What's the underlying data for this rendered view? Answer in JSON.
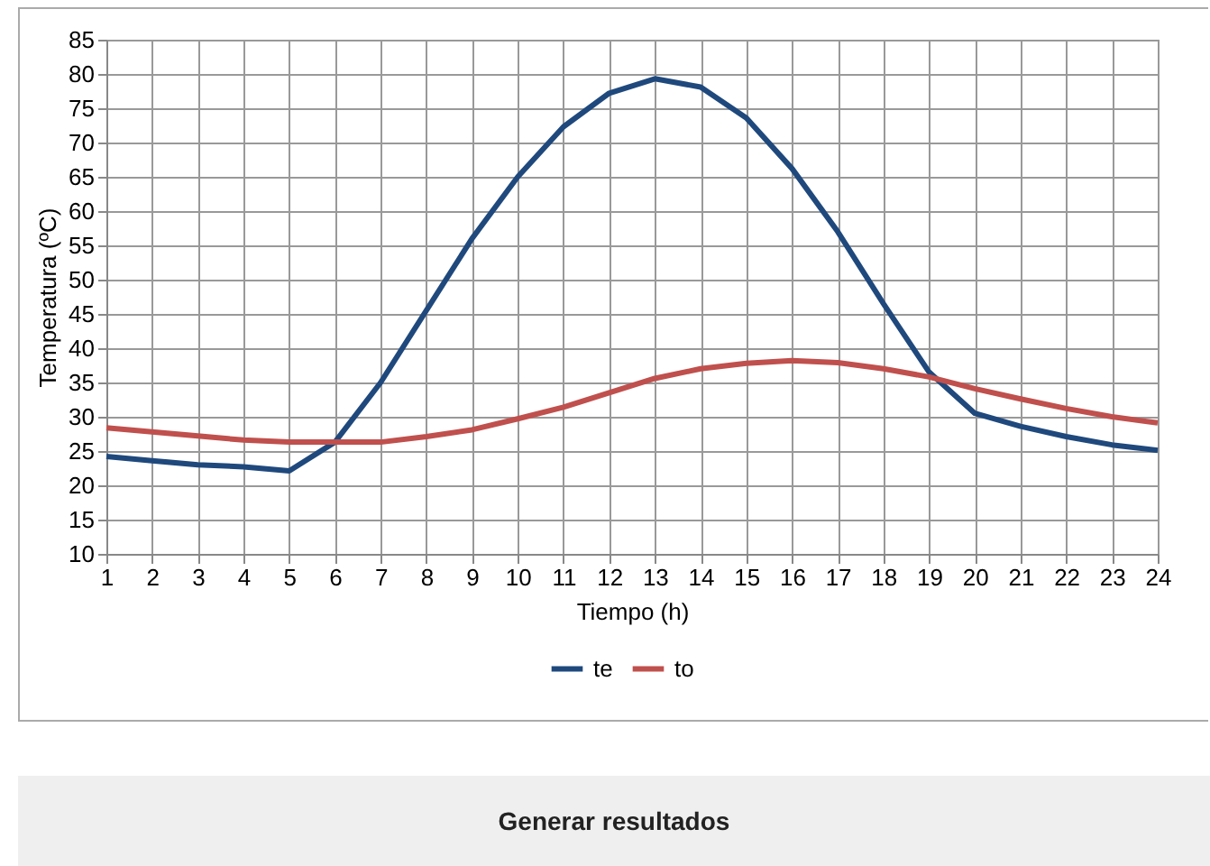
{
  "chart_data": {
    "type": "line",
    "xlabel": "Tiempo (h)",
    "ylabel": "Temperatura (ºC)",
    "x": [
      1,
      2,
      3,
      4,
      5,
      6,
      7,
      8,
      9,
      10,
      11,
      12,
      13,
      14,
      15,
      16,
      17,
      18,
      19,
      20,
      21,
      22,
      23,
      24
    ],
    "series": [
      {
        "name": "te",
        "color": "#1f497d",
        "values": [
          24.2,
          23.6,
          23.0,
          22.7,
          22.1,
          26.3,
          35,
          45.5,
          56,
          65,
          72.3,
          77.2,
          79.3,
          78.1,
          73.6,
          66.2,
          57,
          46.5,
          36.5,
          30.5,
          28.6,
          27.1,
          25.9,
          25.1
        ]
      },
      {
        "name": "to",
        "color": "#c0504d",
        "values": [
          28.4,
          27.8,
          27.2,
          26.6,
          26.3,
          26.3,
          26.3,
          27.1,
          28.1,
          29.7,
          31.4,
          33.5,
          35.6,
          37,
          37.8,
          38.2,
          37.9,
          37,
          35.8,
          34.1,
          32.6,
          31.2,
          30,
          29.1
        ]
      }
    ],
    "xlim": [
      1,
      24
    ],
    "xticks": [
      1,
      2,
      3,
      4,
      5,
      6,
      7,
      8,
      9,
      10,
      11,
      12,
      13,
      14,
      15,
      16,
      17,
      18,
      19,
      20,
      21,
      22,
      23,
      24
    ],
    "ylim": [
      10,
      85
    ],
    "yticks": [
      10,
      15,
      20,
      25,
      30,
      35,
      40,
      45,
      50,
      55,
      60,
      65,
      70,
      75,
      80,
      85
    ],
    "grid": true,
    "legend": "bottom",
    "marker": "none",
    "line_style": "solid",
    "annotations": [
      "Generar resultados"
    ]
  }
}
